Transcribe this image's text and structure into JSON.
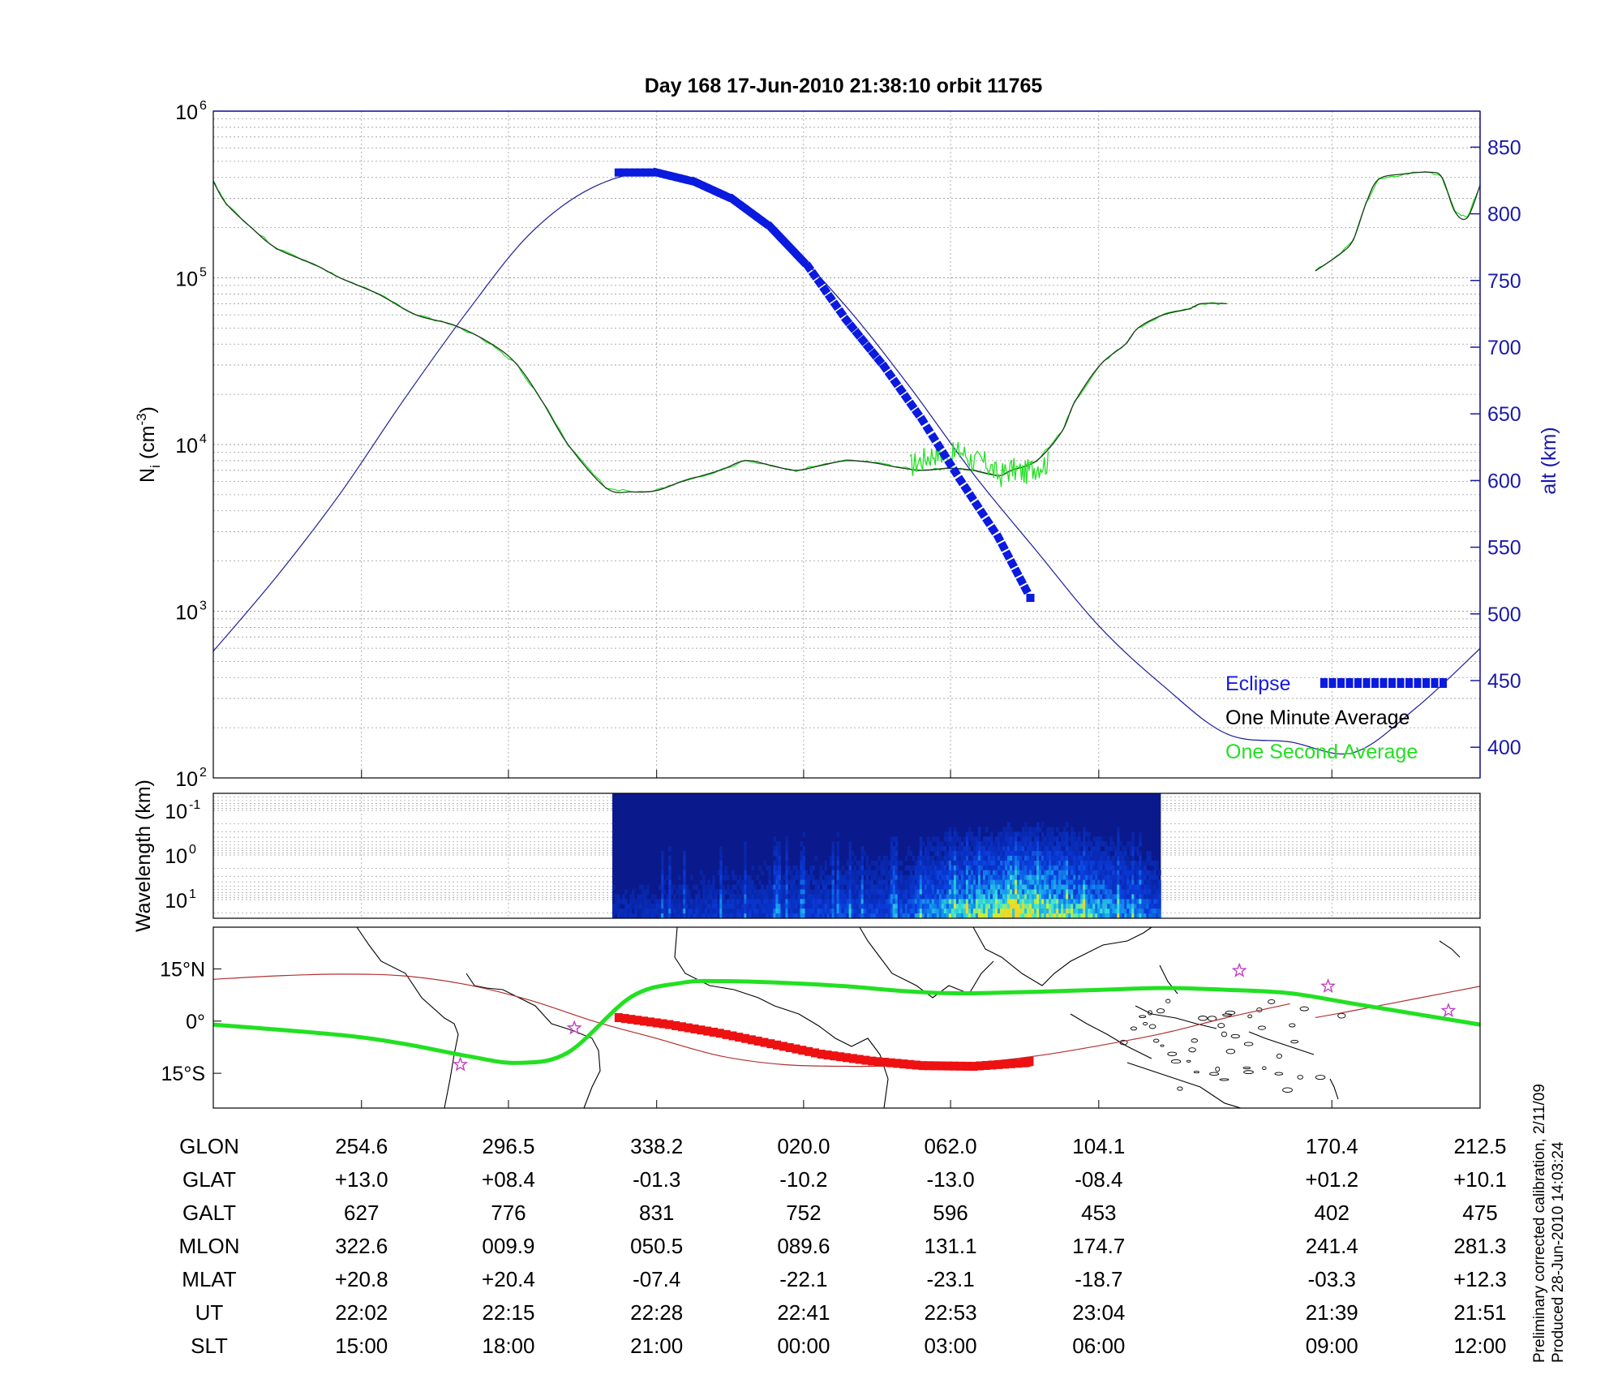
{
  "title": "Day 168  17-Jun-2010 21:38:10   orbit 11765",
  "footer": {
    "line1": "Preliminary corrected calibration, 2/11/09",
    "line2": "Produced 28-Jun-2010 14:03:24"
  },
  "colors": {
    "frame": "#000000",
    "alt_axis": "#1a1aa8",
    "alt_line": "#1f1f9a",
    "eclipse": "#0a1adf",
    "one_minute": "#1d3a1d",
    "one_second": "#22e022",
    "track_line": "#b03030",
    "eclipse_track": "#ee1111",
    "magnetic_eq": "#22e022",
    "star": "#c23fc2",
    "spectrogram_bg": "#0a1a8c"
  },
  "chart_data": [
    {
      "id": "ion-density",
      "type": "line",
      "ylabel": "N_i (cm^-3)",
      "y2label": "alt (km)",
      "yscale": "log",
      "ylim": [
        100,
        1000000
      ],
      "y2lim": [
        377,
        877
      ],
      "yticks": [
        "10^2",
        "10^3",
        "10^4",
        "10^5",
        "10^6"
      ],
      "y2ticks": [
        400,
        450,
        500,
        550,
        600,
        650,
        700,
        750,
        800,
        850
      ],
      "grid": true,
      "legend": {
        "position": "bottom-right",
        "items": [
          "Eclipse",
          "One Minute Average",
          "One Second Average"
        ]
      },
      "series": [
        {
          "name": "One Minute Average",
          "x": [
            0,
            0.01,
            0.03,
            0.05,
            0.08,
            0.1,
            0.13,
            0.16,
            0.19,
            0.22,
            0.24,
            0.26,
            0.28,
            0.31,
            0.33,
            0.35,
            0.37,
            0.4,
            0.42,
            0.44,
            0.46,
            0.48,
            0.5,
            0.52,
            0.54,
            0.56,
            0.58,
            0.6,
            0.62,
            0.63,
            0.65,
            0.67,
            0.68,
            0.7,
            0.72,
            0.73,
            0.75,
            0.77,
            0.78,
            0.8
          ],
          "y": [
            380000,
            280000,
            200000,
            150000,
            120000,
            100000,
            80000,
            60000,
            52000,
            40000,
            30000,
            18000,
            10000,
            5500,
            5200,
            5300,
            6000,
            7000,
            8000,
            7500,
            7000,
            7500,
            8000,
            7800,
            7300,
            7000,
            7200,
            7000,
            6500,
            7000,
            8000,
            12000,
            18000,
            30000,
            40000,
            50000,
            60000,
            65000,
            70000,
            70000
          ]
        },
        {
          "name": "One Minute Average (segment 2)",
          "x": [
            0.87,
            0.89,
            0.9,
            0.91,
            0.92,
            0.94,
            0.96,
            0.97,
            0.98,
            0.99,
            1.0
          ],
          "y": [
            110000,
            140000,
            170000,
            280000,
            390000,
            420000,
            430000,
            400000,
            250000,
            230000,
            360000
          ]
        },
        {
          "name": "One Second Average",
          "x": [
            0.55,
            0.56,
            0.57,
            0.58,
            0.59,
            0.6,
            0.61,
            0.62,
            0.63,
            0.64,
            0.65,
            0.66
          ],
          "y": [
            7500,
            8200,
            9000,
            8500,
            9200,
            8000,
            7800,
            6500,
            7200,
            6800,
            7500,
            7900
          ]
        },
        {
          "name": "alt (km)",
          "axis": "right",
          "x": [
            0,
            0.05,
            0.1,
            0.15,
            0.2,
            0.25,
            0.3,
            0.35,
            0.4,
            0.45,
            0.5,
            0.55,
            0.6,
            0.65,
            0.7,
            0.75,
            0.8,
            0.85,
            0.9,
            0.95,
            1.0
          ],
          "y": [
            472,
            528,
            590,
            660,
            726,
            785,
            820,
            831,
            815,
            780,
            730,
            670,
            605,
            547,
            490,
            446,
            410,
            404,
            396,
            430,
            474
          ]
        },
        {
          "name": "Eclipse",
          "axis": "right",
          "eclipse": true,
          "x": [
            0.32,
            0.35,
            0.38,
            0.41,
            0.44,
            0.47,
            0.5,
            0.53,
            0.56,
            0.59,
            0.62,
            0.645
          ],
          "y": [
            831,
            831,
            824,
            811,
            790,
            760,
            720,
            685,
            645,
            600,
            557,
            512
          ]
        }
      ]
    },
    {
      "id": "wavelength-spectrogram",
      "type": "heatmap",
      "ylabel": "Wavelength (km)",
      "yticks": [
        "10^-1",
        "10^0",
        "10^1"
      ],
      "data_range_x": [
        0.315,
        0.748
      ],
      "grid": true
    },
    {
      "id": "ground-track",
      "type": "line",
      "yticks": [
        "15°N",
        "0°",
        "15°S"
      ],
      "ylim": [
        -25,
        27
      ],
      "series": [
        {
          "name": "orbit track",
          "x": [
            0,
            0.05,
            0.1,
            0.15,
            0.2,
            0.25,
            0.3,
            0.35,
            0.4,
            0.45,
            0.5,
            0.55,
            0.6,
            0.65,
            0.7,
            0.75,
            0.8,
            0.85,
            0.87,
            0.9,
            0.95,
            1.0
          ],
          "y": [
            12,
            13,
            13.5,
            13,
            10.5,
            6,
            0,
            -5,
            -10,
            -12.5,
            -13,
            -12.8,
            -12,
            -10,
            -7,
            -3.5,
            1,
            5,
            1,
            3,
            6.5,
            10
          ]
        },
        {
          "name": "eclipse track",
          "eclipse": true,
          "x": [
            0.32,
            0.36,
            0.4,
            0.44,
            0.48,
            0.52,
            0.56,
            0.6,
            0.64,
            0.645
          ],
          "y": [
            1,
            -1,
            -3.5,
            -6.5,
            -9.5,
            -11.5,
            -12.8,
            -13,
            -12,
            -11.5
          ]
        },
        {
          "name": "magnetic equator",
          "x": [
            0,
            0.1,
            0.15,
            0.2,
            0.24,
            0.28,
            0.33,
            0.37,
            0.4,
            0.45,
            0.5,
            0.55,
            0.6,
            0.7,
            0.75,
            0.8,
            0.85,
            0.9,
            0.95,
            1.0
          ],
          "y": [
            -1,
            -4,
            -6.5,
            -10,
            -12,
            -9,
            7,
            11,
            11.5,
            11,
            10,
            8.5,
            8,
            9,
            9.5,
            9,
            8,
            5,
            2,
            -1
          ]
        }
      ],
      "stars": {
        "x": [
          0.195,
          0.285,
          0.81,
          0.88,
          0.975
        ],
        "y": [
          -12.5,
          -2,
          14.5,
          10,
          3
        ]
      }
    }
  ],
  "table": {
    "row_labels": [
      "GLON",
      "GLAT",
      "GALT",
      "MLON",
      "MLAT",
      "UT",
      "SLT"
    ],
    "columns": [
      {
        "x": 0.117,
        "values": [
          "254.6",
          "+13.0",
          "627",
          "322.6",
          "+20.8",
          "22:02",
          "15:00"
        ]
      },
      {
        "x": 0.233,
        "values": [
          "296.5",
          "+08.4",
          "776",
          "009.9",
          "+20.4",
          "22:15",
          "18:00"
        ]
      },
      {
        "x": 0.35,
        "values": [
          "338.2",
          "-01.3",
          "831",
          "050.5",
          "-07.4",
          "22:28",
          "21:00"
        ]
      },
      {
        "x": 0.466,
        "values": [
          "020.0",
          "-10.2",
          "752",
          "089.6",
          "-22.1",
          "22:41",
          "00:00"
        ]
      },
      {
        "x": 0.582,
        "values": [
          "062.0",
          "-13.0",
          "596",
          "131.1",
          "-23.1",
          "22:53",
          "03:00"
        ]
      },
      {
        "x": 0.699,
        "values": [
          "104.1",
          "-08.4",
          "453",
          "174.7",
          "-18.7",
          "23:04",
          "06:00"
        ]
      },
      {
        "x": 0.883,
        "values": [
          "170.4",
          "+01.2",
          "402",
          "241.4",
          "-03.3",
          "21:39",
          "09:00"
        ]
      },
      {
        "x": 1.0,
        "values": [
          "212.5",
          "+10.1",
          "475",
          "281.3",
          "+12.3",
          "21:51",
          "12:00"
        ]
      }
    ]
  },
  "x_tick_positions": [
    0.117,
    0.233,
    0.35,
    0.466,
    0.582,
    0.699,
    0.883,
    1.0
  ]
}
